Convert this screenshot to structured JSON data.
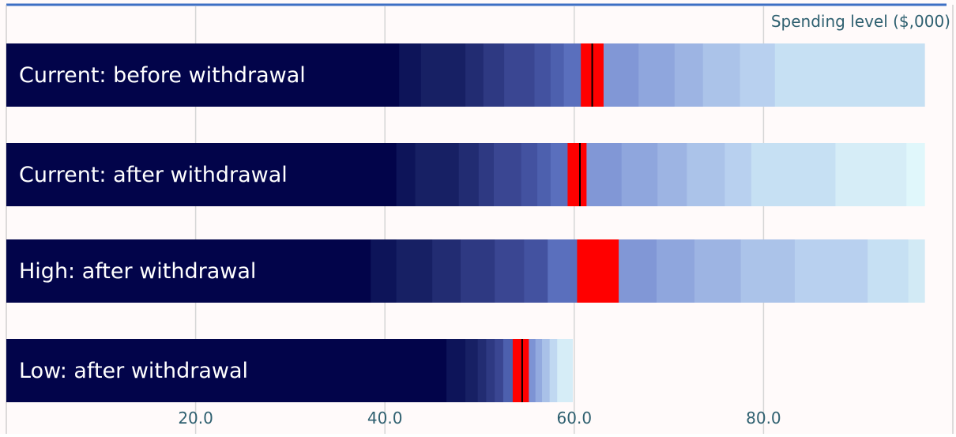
{
  "chart_data": {
    "type": "bar",
    "subtype": "fan-chart-stacked-bands",
    "title": "",
    "xlabel": "Spending level ($,000)",
    "ylabel": "",
    "xlim": [
      0,
      98
    ],
    "x_ticks": [
      "20.0",
      "40.0",
      "60.0",
      "80.0"
    ],
    "x_tick_values": [
      20,
      40,
      60,
      80
    ],
    "grid": true,
    "legend": "none",
    "colors": {
      "background": "#fffafa",
      "median_band": "#ff0000",
      "median_line": "#000000",
      "axis_label": "#2f6070",
      "top_border": "#3d6fc4",
      "gridline": "#d6d6d6",
      "bar_label": "#ffffff"
    },
    "categories": [
      "Current: before withdrawal",
      "Current: after withdrawal",
      "High: after withdrawal",
      "Low: after withdrawal"
    ],
    "series": [
      {
        "bands": [
          {
            "to": 41.5,
            "color": "#02044a"
          },
          {
            "to": 43.8,
            "color": "#0d1459"
          },
          {
            "to": 48.5,
            "color": "#172064"
          },
          {
            "to": 50.4,
            "color": "#222c72"
          },
          {
            "to": 52.6,
            "color": "#2e3982"
          },
          {
            "to": 55.8,
            "color": "#3a4692"
          },
          {
            "to": 57.5,
            "color": "#4352a0"
          },
          {
            "to": 58.9,
            "color": "#4d60ae"
          },
          {
            "to": 60.7,
            "color": "#5a6fbd"
          },
          {
            "to": 63.1,
            "color": "#ff0000"
          },
          {
            "to": 66.8,
            "color": "#8197d6"
          },
          {
            "to": 70.6,
            "color": "#8fa6dd"
          },
          {
            "to": 73.6,
            "color": "#9db4e3"
          },
          {
            "to": 77.5,
            "color": "#abc3e9"
          },
          {
            "to": 81.2,
            "color": "#b8d0ef"
          },
          {
            "to": 97.0,
            "color": "#c6e0f3"
          }
        ],
        "median": 61.9
      },
      {
        "bands": [
          {
            "to": 41.2,
            "color": "#02044a"
          },
          {
            "to": 43.2,
            "color": "#0d1459"
          },
          {
            "to": 47.8,
            "color": "#172064"
          },
          {
            "to": 49.9,
            "color": "#222c72"
          },
          {
            "to": 51.5,
            "color": "#2e3982"
          },
          {
            "to": 54.4,
            "color": "#3a4692"
          },
          {
            "to": 56.1,
            "color": "#4352a0"
          },
          {
            "to": 57.5,
            "color": "#4d60ae"
          },
          {
            "to": 59.3,
            "color": "#5a6fbd"
          },
          {
            "to": 61.3,
            "color": "#ff0000"
          },
          {
            "to": 65.0,
            "color": "#8197d6"
          },
          {
            "to": 68.8,
            "color": "#8fa6dd"
          },
          {
            "to": 71.9,
            "color": "#9db4e3"
          },
          {
            "to": 75.9,
            "color": "#abc3e9"
          },
          {
            "to": 78.7,
            "color": "#b8d0ef"
          },
          {
            "to": 87.6,
            "color": "#c6e0f3"
          },
          {
            "to": 95.1,
            "color": "#d6edf7"
          },
          {
            "to": 97.0,
            "color": "#e0f7fb"
          }
        ],
        "median": 60.6
      },
      {
        "bands": [
          {
            "to": 38.5,
            "color": "#02044a"
          },
          {
            "to": 41.2,
            "color": "#0d1459"
          },
          {
            "to": 45.0,
            "color": "#172064"
          },
          {
            "to": 48.0,
            "color": "#222c72"
          },
          {
            "to": 51.6,
            "color": "#2e3982"
          },
          {
            "to": 54.7,
            "color": "#3a4692"
          },
          {
            "to": 57.2,
            "color": "#4352a0"
          },
          {
            "to": 60.3,
            "color": "#5a6fbd"
          },
          {
            "to": 64.7,
            "color": "#ff0000"
          },
          {
            "to": 68.7,
            "color": "#8197d6"
          },
          {
            "to": 72.7,
            "color": "#8fa6dd"
          },
          {
            "to": 77.6,
            "color": "#9db4e3"
          },
          {
            "to": 83.3,
            "color": "#abc3e9"
          },
          {
            "to": 91.0,
            "color": "#b8d0ef"
          },
          {
            "to": 95.3,
            "color": "#c6e0f3"
          },
          {
            "to": 97.0,
            "color": "#d2eaf5"
          }
        ],
        "median": null
      },
      {
        "bands": [
          {
            "to": 46.5,
            "color": "#02044a"
          },
          {
            "to": 48.5,
            "color": "#0d1459"
          },
          {
            "to": 49.8,
            "color": "#172064"
          },
          {
            "to": 50.7,
            "color": "#222c72"
          },
          {
            "to": 51.6,
            "color": "#2e3982"
          },
          {
            "to": 52.5,
            "color": "#3a4692"
          },
          {
            "to": 53.5,
            "color": "#4d60ae"
          },
          {
            "to": 55.2,
            "color": "#ff0000"
          },
          {
            "to": 55.9,
            "color": "#7d93d4"
          },
          {
            "to": 56.6,
            "color": "#93aadf"
          },
          {
            "to": 57.4,
            "color": "#a9c1e8"
          },
          {
            "to": 58.2,
            "color": "#c0d8f1"
          },
          {
            "to": 59.8,
            "color": "#d6edf7"
          }
        ],
        "median": 54.5
      }
    ]
  }
}
